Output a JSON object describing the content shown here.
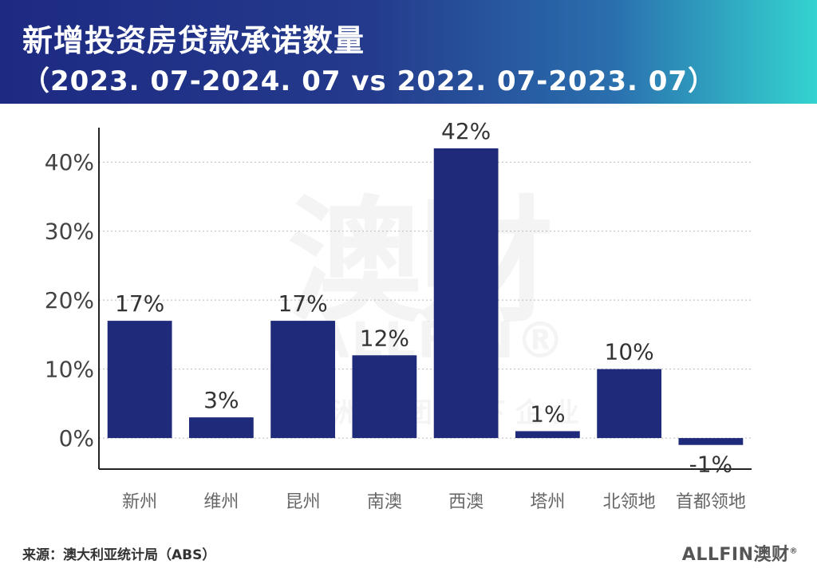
{
  "header": {
    "title": "新增投资房贷款承诺数量",
    "subtitle": "（2023. 07-2024. 07 vs 2022. 07-2023. 07）"
  },
  "watermark": {
    "big": "澳财",
    "brand": "ALLFIN®",
    "tagline": "澳洲集团旗下企业"
  },
  "footer": {
    "source": "来源：澳大利亚统计局（ABS）",
    "logo": "ALLFIN澳财",
    "logo_mark": "®"
  },
  "chart_data": {
    "type": "bar",
    "categories": [
      "新州",
      "维州",
      "昆州",
      "南澳",
      "西澳",
      "塔州",
      "北领地",
      "首都领地"
    ],
    "values": [
      17,
      3,
      17,
      12,
      42,
      1,
      10,
      -1
    ],
    "data_labels": [
      "17%",
      "3%",
      "17%",
      "12%",
      "42%",
      "1%",
      "10%",
      "-1%"
    ],
    "y_ticks": [
      0,
      10,
      20,
      30,
      40
    ],
    "y_tick_labels": [
      "0%",
      "10%",
      "20%",
      "30%",
      "40%"
    ],
    "ylim": [
      -4.5,
      45
    ],
    "bar_color": "#1f2a7a",
    "grid": true,
    "title": "",
    "xlabel": "",
    "ylabel": ""
  }
}
